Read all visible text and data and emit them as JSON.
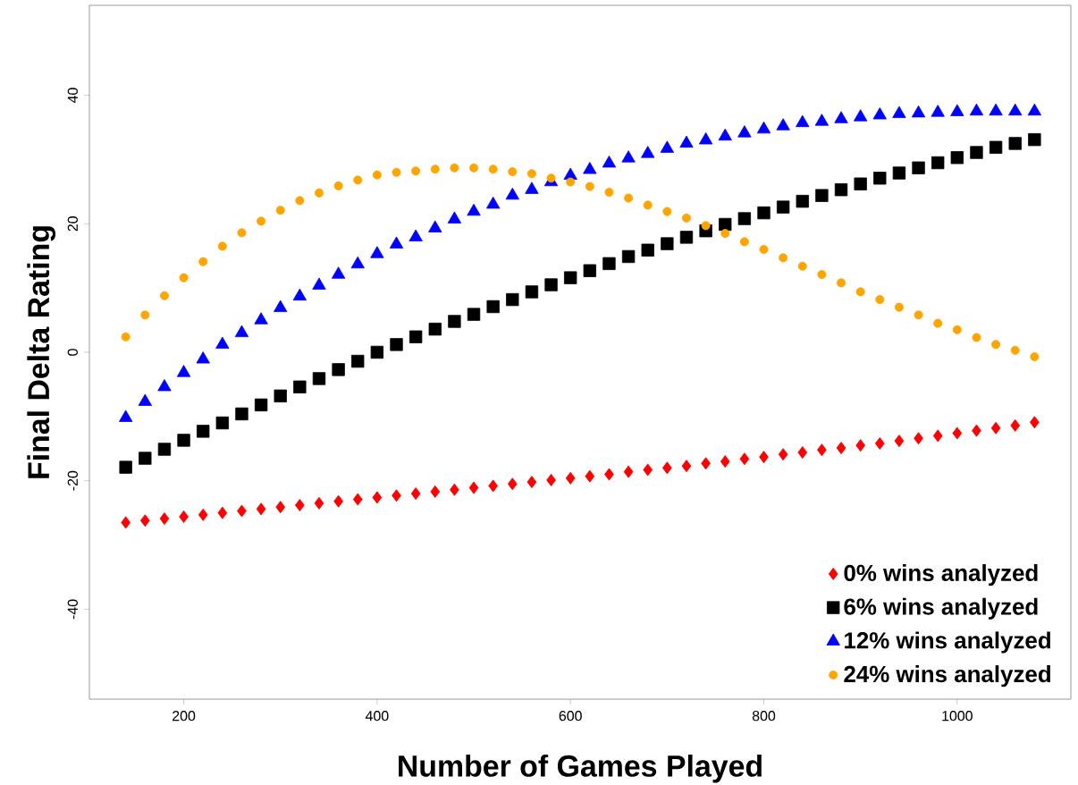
{
  "chart_data": {
    "type": "scatter",
    "xlabel": "Number of Games Played",
    "ylabel": "Final Delta Rating",
    "x": [
      140,
      160,
      180,
      200,
      220,
      240,
      260,
      280,
      300,
      320,
      340,
      360,
      380,
      400,
      420,
      440,
      460,
      480,
      500,
      520,
      540,
      560,
      580,
      600,
      620,
      640,
      660,
      680,
      700,
      720,
      740,
      760,
      780,
      800,
      820,
      840,
      860,
      880,
      900,
      920,
      940,
      960,
      980,
      1000,
      1020,
      1040,
      1060,
      1080
    ],
    "xlim": [
      102.4,
      1117.6
    ],
    "ylim": [
      -54,
      54
    ],
    "xticks": [
      200,
      400,
      600,
      800,
      1000
    ],
    "yticks": [
      -40,
      -20,
      0,
      20,
      40
    ],
    "grid": false,
    "legend": "bottom right",
    "series": [
      {
        "name": "0% wins analyzed",
        "color": "#ff0000",
        "marker": "diamond",
        "values": [
          -26.5,
          -26.2,
          -25.9,
          -25.6,
          -25.3,
          -25.0,
          -24.7,
          -24.4,
          -24.1,
          -23.8,
          -23.5,
          -23.2,
          -22.9,
          -22.6,
          -22.3,
          -22.0,
          -21.7,
          -21.4,
          -21.1,
          -20.8,
          -20.5,
          -20.2,
          -19.9,
          -19.6,
          -19.3,
          -19.0,
          -18.6,
          -18.3,
          -18.0,
          -17.7,
          -17.3,
          -17.0,
          -16.6,
          -16.3,
          -15.9,
          -15.6,
          -15.2,
          -14.9,
          -14.5,
          -14.2,
          -13.8,
          -13.4,
          -13.0,
          -12.6,
          -12.2,
          -11.8,
          -11.4,
          -10.9
        ]
      },
      {
        "name": "6% wins analyzed",
        "color": "#000000",
        "marker": "square",
        "values": [
          -17.9,
          -16.5,
          -15.1,
          -13.7,
          -12.3,
          -11.0,
          -9.6,
          -8.2,
          -6.8,
          -5.4,
          -4.1,
          -2.7,
          -1.4,
          0.0,
          1.2,
          2.4,
          3.6,
          4.8,
          5.9,
          7.1,
          8.2,
          9.4,
          10.5,
          11.6,
          12.7,
          13.8,
          14.9,
          15.9,
          16.9,
          17.9,
          18.9,
          19.9,
          20.8,
          21.7,
          22.6,
          23.5,
          24.4,
          25.3,
          26.2,
          27.1,
          27.9,
          28.7,
          29.5,
          30.3,
          31.1,
          31.9,
          32.5,
          33.1
        ]
      },
      {
        "name": "12% wins analyzed",
        "color": "#0000ff",
        "marker": "triangle",
        "values": [
          -10.2,
          -7.7,
          -5.4,
          -3.2,
          -1.1,
          1.2,
          3.0,
          5.0,
          6.9,
          8.7,
          10.4,
          12.1,
          13.7,
          15.3,
          16.8,
          17.9,
          19.3,
          20.7,
          21.9,
          23.0,
          24.4,
          25.3,
          26.5,
          27.5,
          28.4,
          29.4,
          30.2,
          30.9,
          31.7,
          32.5,
          33.0,
          33.6,
          34.1,
          34.7,
          35.2,
          35.7,
          35.9,
          36.3,
          36.6,
          36.9,
          37.1,
          37.2,
          37.3,
          37.4,
          37.5,
          37.5,
          37.5,
          37.5
        ]
      },
      {
        "name": "24% wins analyzed",
        "color": "#ffa500",
        "marker": "circle",
        "values": [
          2.4,
          5.8,
          8.8,
          11.6,
          14.1,
          16.5,
          18.6,
          20.4,
          22.1,
          23.6,
          24.8,
          25.9,
          26.8,
          27.6,
          28.0,
          28.2,
          28.5,
          28.7,
          28.7,
          28.5,
          28.1,
          27.8,
          27.1,
          26.5,
          25.8,
          24.9,
          24.0,
          22.9,
          21.9,
          20.9,
          19.7,
          18.5,
          17.2,
          16.0,
          14.7,
          13.4,
          12.1,
          10.8,
          9.4,
          8.2,
          7.0,
          5.8,
          4.5,
          3.5,
          2.3,
          1.2,
          0.3,
          -0.7
        ]
      }
    ]
  }
}
